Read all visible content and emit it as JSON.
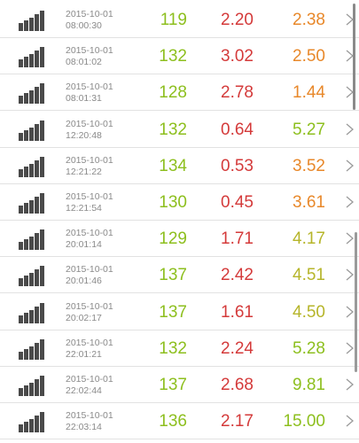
{
  "colors": {
    "green": "#8dbf1e",
    "red": "#d43a3a",
    "orange": "#e8882a",
    "olive": "#b6b52a",
    "signal_bar": "#4a4a4a",
    "divider": "#e2e2e2"
  },
  "icons": {
    "signal": "signal-strength-icon",
    "chevron": "chevron-right-icon"
  },
  "records": [
    {
      "date": "2015-10-01",
      "time": "08:00:30",
      "v1": "119",
      "v2": "2.20",
      "v3": "2.38",
      "v3_color": "#e8882a"
    },
    {
      "date": "2015-10-01",
      "time": "08:01:02",
      "v1": "132",
      "v2": "3.02",
      "v3": "2.50",
      "v3_color": "#e8882a"
    },
    {
      "date": "2015-10-01",
      "time": "08:01:31",
      "v1": "128",
      "v2": "2.78",
      "v3": "1.44",
      "v3_color": "#e8882a"
    },
    {
      "date": "2015-10-01",
      "time": "12:20:48",
      "v1": "132",
      "v2": "0.64",
      "v3": "5.27",
      "v3_color": "#8dbf1e"
    },
    {
      "date": "2015-10-01",
      "time": "12:21:22",
      "v1": "134",
      "v2": "0.53",
      "v3": "3.52",
      "v3_color": "#e8882a"
    },
    {
      "date": "2015-10-01",
      "time": "12:21:54",
      "v1": "130",
      "v2": "0.45",
      "v3": "3.61",
      "v3_color": "#e8882a"
    },
    {
      "date": "2015-10-01",
      "time": "20:01:14",
      "v1": "129",
      "v2": "1.71",
      "v3": "4.17",
      "v3_color": "#b6b52a"
    },
    {
      "date": "2015-10-01",
      "time": "20:01:46",
      "v1": "137",
      "v2": "2.42",
      "v3": "4.51",
      "v3_color": "#b6b52a"
    },
    {
      "date": "2015-10-01",
      "time": "20:02:17",
      "v1": "137",
      "v2": "1.61",
      "v3": "4.50",
      "v3_color": "#b6b52a"
    },
    {
      "date": "2015-10-01",
      "time": "22:01:21",
      "v1": "132",
      "v2": "2.24",
      "v3": "5.28",
      "v3_color": "#8dbf1e"
    },
    {
      "date": "2015-10-01",
      "time": "22:02:44",
      "v1": "137",
      "v2": "2.68",
      "v3": "9.81",
      "v3_color": "#8dbf1e"
    },
    {
      "date": "2015-10-01",
      "time": "22:03:14",
      "v1": "136",
      "v2": "2.17",
      "v3": "15.00",
      "v3_color": "#8dbf1e"
    }
  ]
}
